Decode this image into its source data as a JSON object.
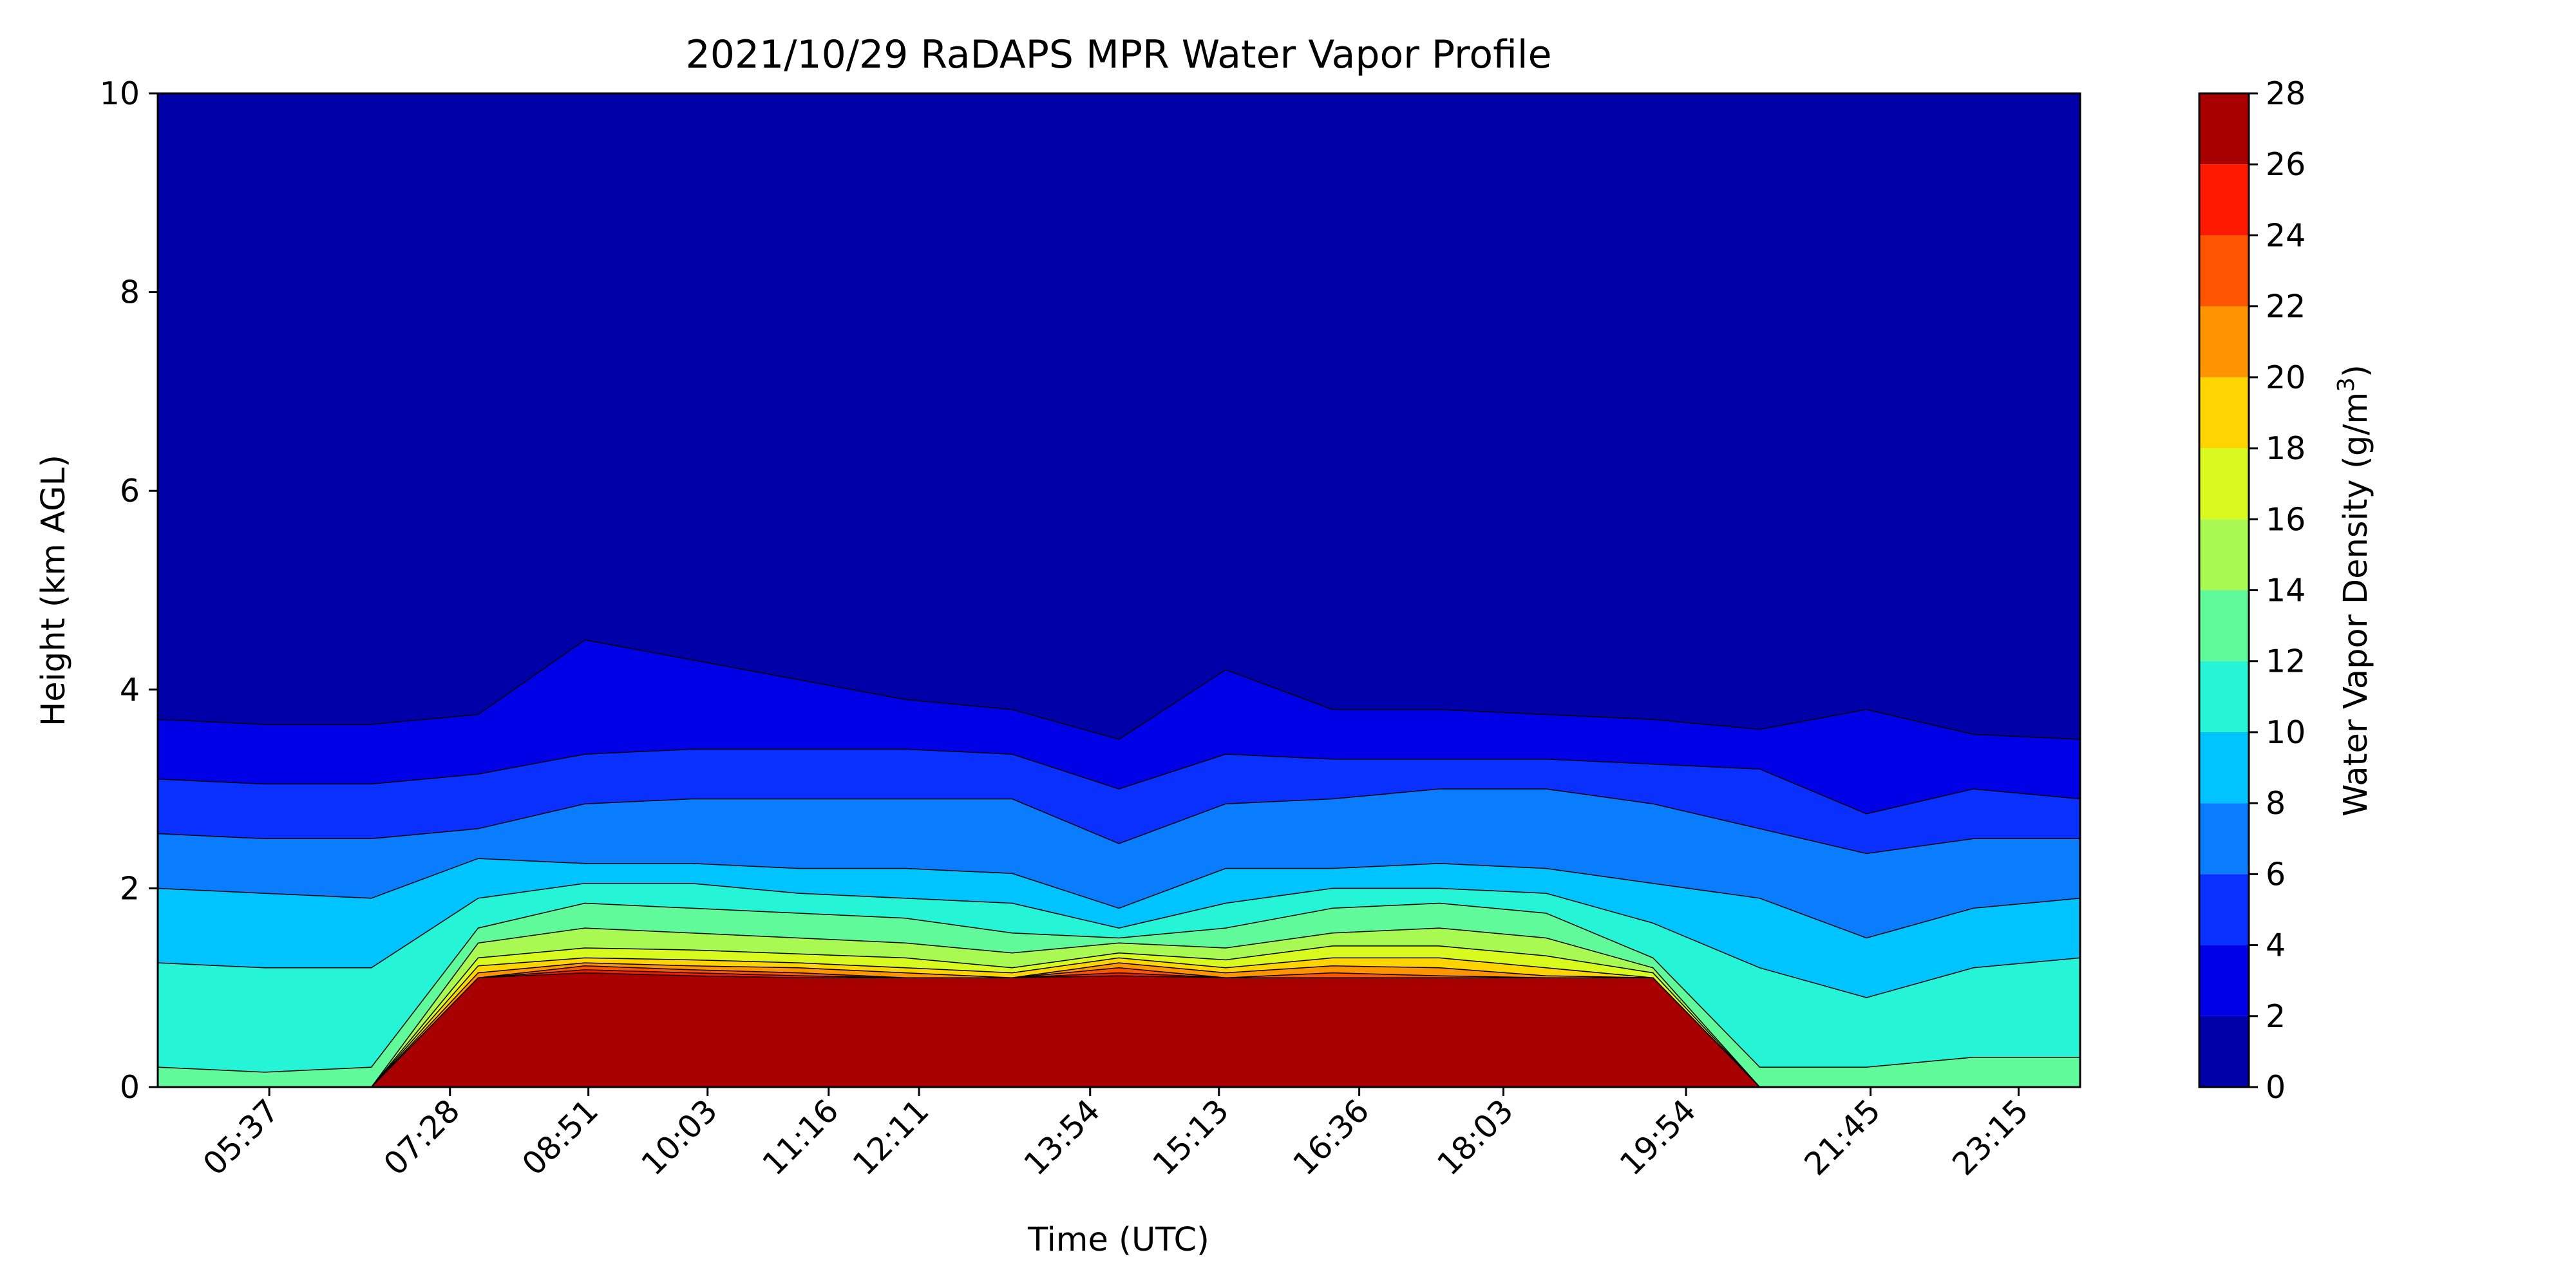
{
  "chart_data": {
    "type": "heatmap",
    "title": "2021/10/29 RaDAPS MPR Water Vapor Profile",
    "xlabel": "Time (UTC)",
    "ylabel": "Height (km AGL)",
    "x_tick_labels": [
      "05:37",
      "07:28",
      "08:51",
      "10:03",
      "11:16",
      "12:11",
      "13:54",
      "15:13",
      "16:36",
      "18:03",
      "19:54",
      "21:45",
      "23:15"
    ],
    "y_ticks": [
      0,
      2,
      4,
      6,
      8,
      10
    ],
    "ylim": [
      0,
      10
    ],
    "colorbar": {
      "label": "Water Vapor Density (g/m³)",
      "label_main": "Water Vapor Density (g/m",
      "label_exponent": "3",
      "label_close": ")",
      "levels": [
        0,
        2,
        4,
        6,
        8,
        10,
        12,
        14,
        16,
        18,
        20,
        22,
        24,
        26,
        28
      ],
      "colors": [
        "#0000a8",
        "#0000e6",
        "#0a30ff",
        "#0a7dff",
        "#00c4ff",
        "#25f5d6",
        "#60fa9a",
        "#a8fa52",
        "#d8fa1e",
        "#ffd400",
        "#ff9400",
        "#ff5500",
        "#ff1800",
        "#a80000"
      ]
    },
    "layers": [
      {
        "level": 2,
        "heights": [
          3.7,
          3.65,
          3.65,
          3.75,
          4.5,
          4.3,
          4.1,
          3.9,
          3.8,
          3.5,
          4.2,
          3.8,
          3.8,
          3.75,
          3.7,
          3.6,
          3.8,
          3.55,
          3.5
        ]
      },
      {
        "level": 4,
        "heights": [
          3.1,
          3.05,
          3.05,
          3.15,
          3.35,
          3.4,
          3.4,
          3.4,
          3.35,
          3.0,
          3.35,
          3.3,
          3.3,
          3.3,
          3.25,
          3.2,
          2.75,
          3.0,
          2.9
        ]
      },
      {
        "level": 6,
        "heights": [
          2.55,
          2.5,
          2.5,
          2.6,
          2.85,
          2.9,
          2.9,
          2.9,
          2.9,
          2.45,
          2.85,
          2.9,
          3.0,
          3.0,
          2.85,
          2.6,
          2.35,
          2.5,
          2.5
        ]
      },
      {
        "level": 8,
        "heights": [
          2.0,
          1.95,
          1.9,
          2.3,
          2.25,
          2.25,
          2.2,
          2.2,
          2.15,
          1.8,
          2.2,
          2.2,
          2.25,
          2.2,
          2.05,
          1.9,
          1.5,
          1.8,
          1.9
        ]
      },
      {
        "level": 10,
        "heights": [
          1.25,
          1.2,
          1.2,
          1.9,
          2.05,
          2.05,
          1.95,
          1.9,
          1.85,
          1.6,
          1.85,
          2.0,
          2.0,
          1.95,
          1.65,
          1.2,
          0.9,
          1.2,
          1.3
        ]
      },
      {
        "level": 12,
        "heights": [
          0.2,
          0.15,
          0.2,
          1.6,
          1.85,
          1.8,
          1.75,
          1.7,
          1.55,
          1.5,
          1.6,
          1.8,
          1.85,
          1.75,
          1.3,
          0.2,
          0.2,
          0.3,
          0.3
        ]
      },
      {
        "level": 14,
        "heights": [
          0,
          0,
          0,
          1.45,
          1.6,
          1.55,
          1.5,
          1.45,
          1.35,
          1.45,
          1.4,
          1.55,
          1.6,
          1.5,
          1.2,
          0,
          0,
          0,
          0
        ]
      },
      {
        "level": 16,
        "heights": [
          0,
          0,
          0,
          1.3,
          1.4,
          1.38,
          1.34,
          1.3,
          1.2,
          1.35,
          1.28,
          1.42,
          1.42,
          1.32,
          1.15,
          0,
          0,
          0,
          0
        ]
      },
      {
        "level": 18,
        "heights": [
          0,
          0,
          0,
          1.22,
          1.3,
          1.28,
          1.25,
          1.2,
          1.15,
          1.3,
          1.2,
          1.3,
          1.3,
          1.2,
          1.1,
          0,
          0,
          0,
          0
        ]
      },
      {
        "level": 20,
        "heights": [
          0,
          0,
          0,
          1.15,
          1.25,
          1.22,
          1.2,
          1.15,
          1.1,
          1.25,
          1.15,
          1.22,
          1.2,
          1.12,
          1.1,
          0,
          0,
          0,
          0
        ]
      },
      {
        "level": 22,
        "heights": [
          0,
          0,
          0,
          1.1,
          1.22,
          1.18,
          1.15,
          1.1,
          1.1,
          1.2,
          1.1,
          1.15,
          1.12,
          1.1,
          1.1,
          0,
          0,
          0,
          0
        ]
      },
      {
        "level": 24,
        "heights": [
          0,
          0,
          0,
          1.1,
          1.18,
          1.15,
          1.12,
          1.1,
          1.1,
          1.15,
          1.1,
          1.1,
          1.1,
          1.1,
          1.1,
          0,
          0,
          0,
          0
        ]
      },
      {
        "level": 26,
        "heights": [
          0,
          0,
          0,
          1.1,
          1.15,
          1.12,
          1.1,
          1.1,
          1.1,
          1.12,
          1.1,
          1.1,
          1.1,
          1.1,
          1.1,
          0,
          0,
          0,
          0
        ]
      }
    ]
  }
}
